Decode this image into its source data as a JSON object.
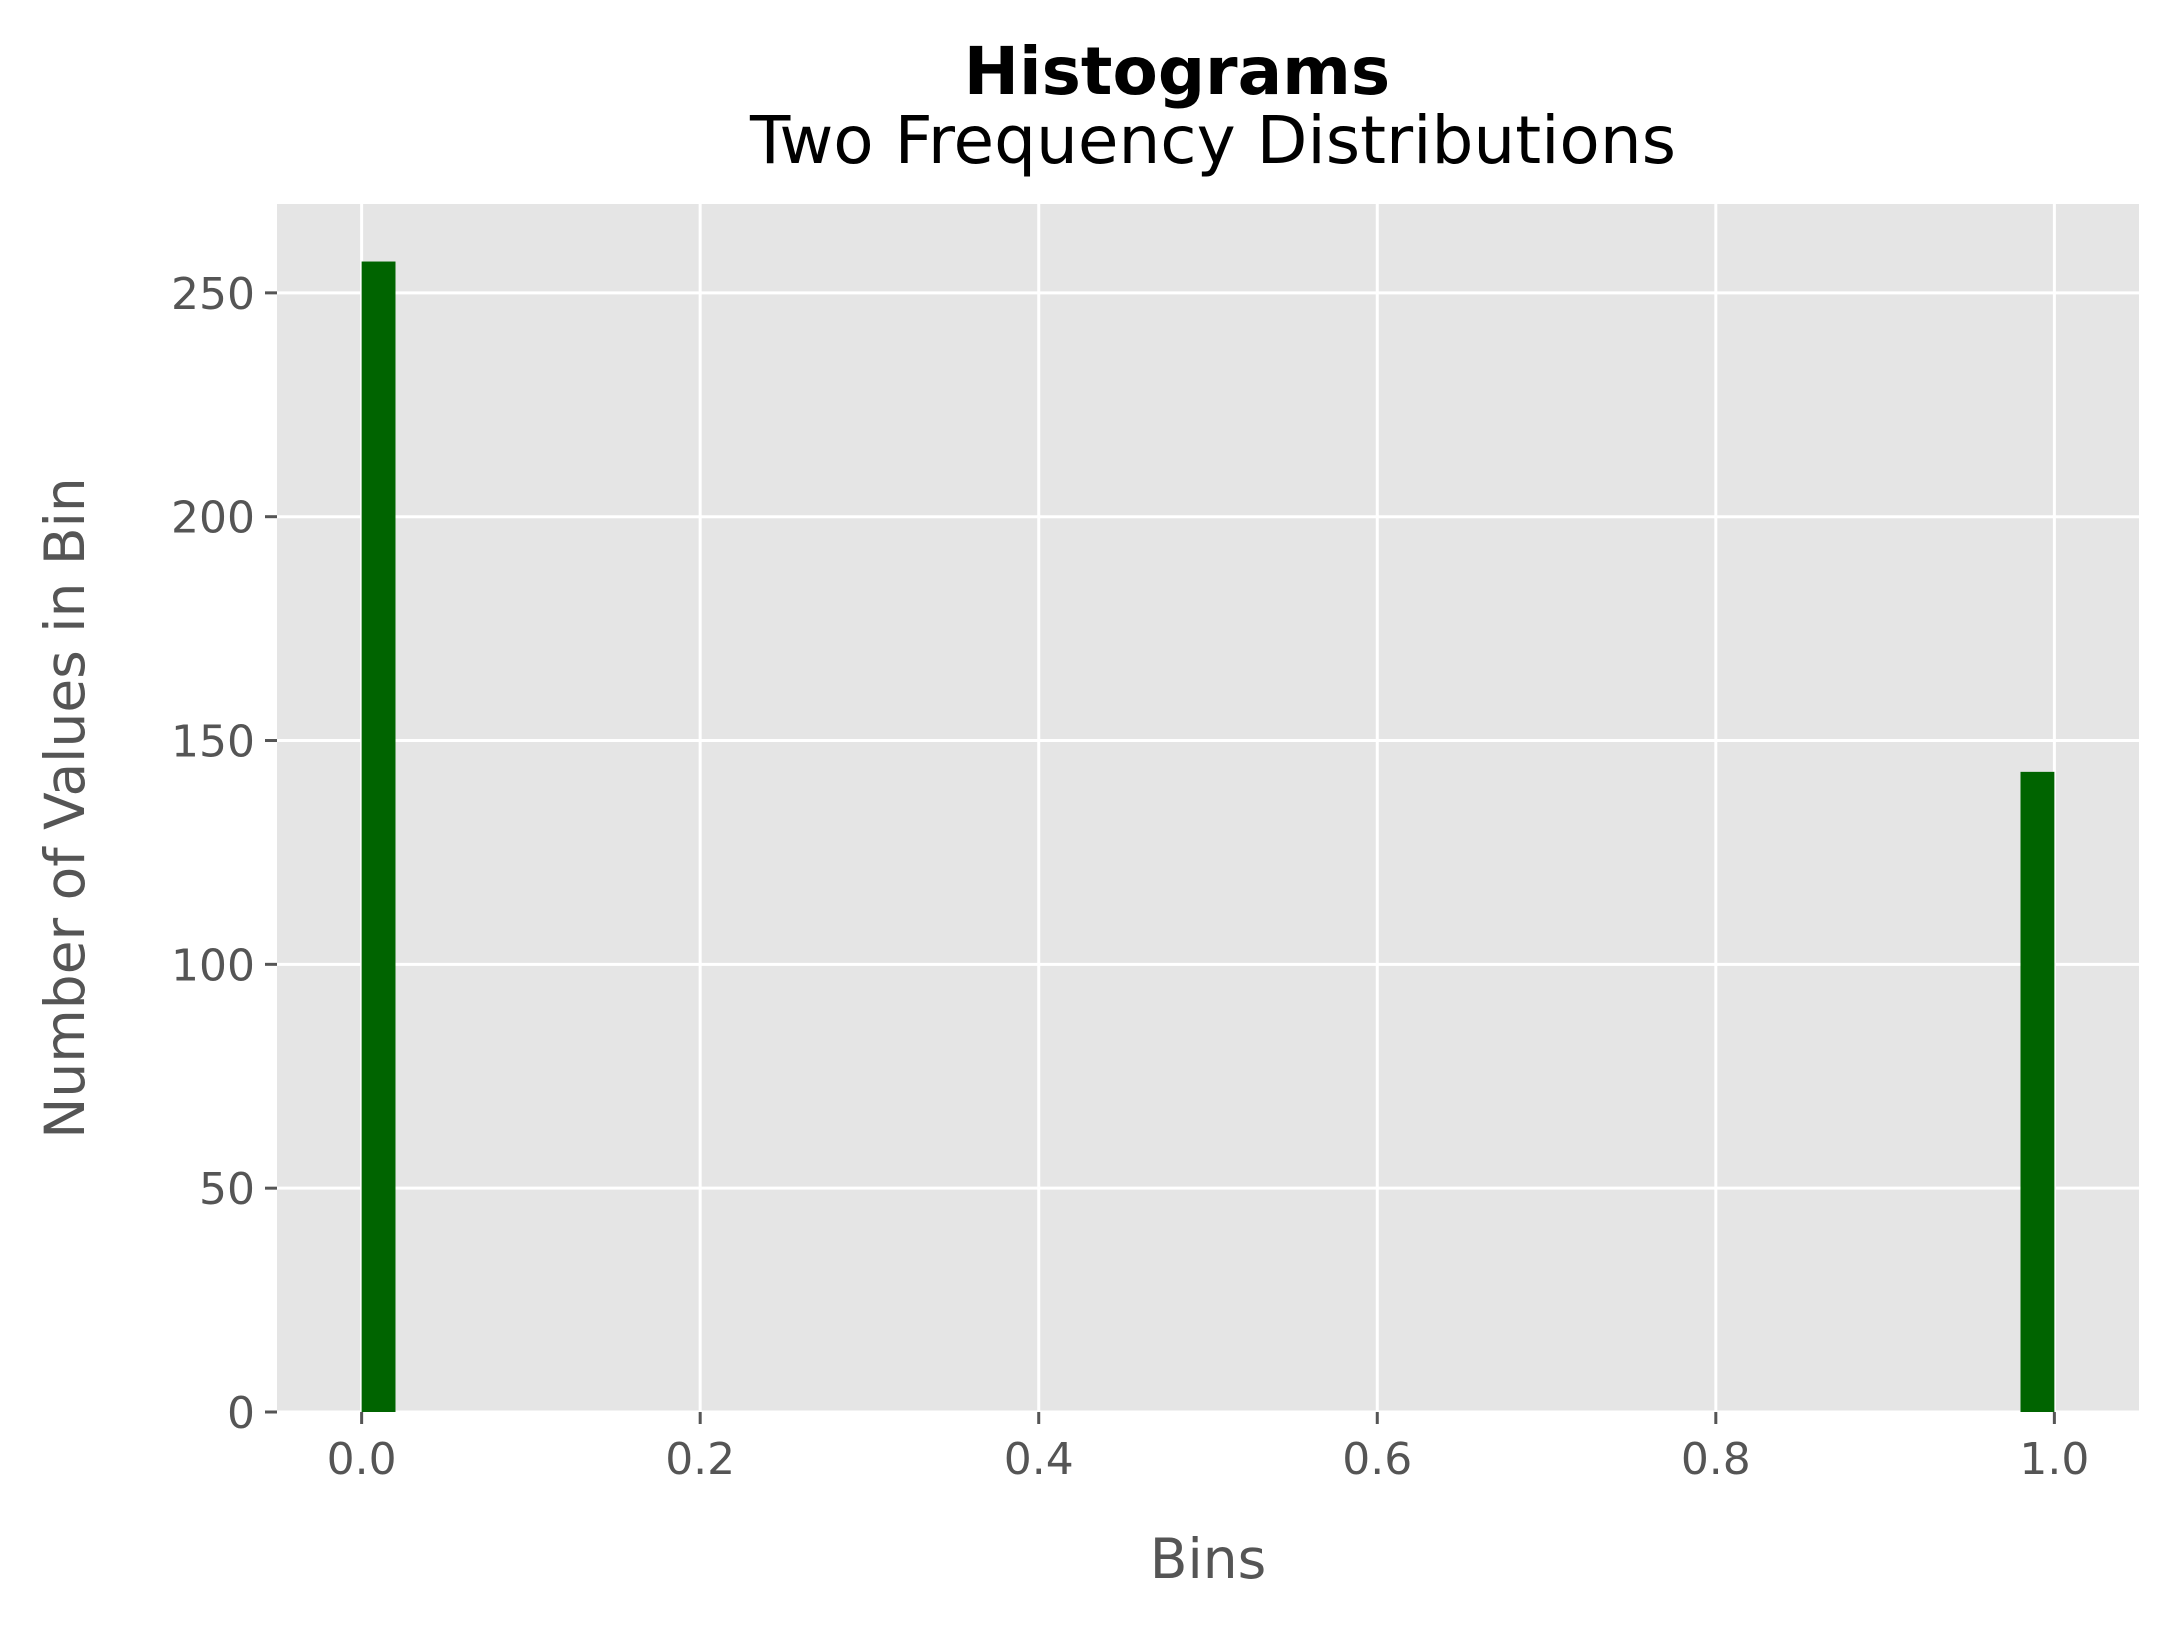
{
  "chart_data": {
    "type": "bar",
    "title": "Histograms",
    "subtitle": "Two Frequency Distributions",
    "xlabel": "Bins",
    "ylabel": "Number of Values in Bin",
    "xlim": [
      -0.05,
      1.05
    ],
    "ylim": [
      0,
      269.85
    ],
    "xticks": [
      0.0,
      0.2,
      0.4,
      0.6,
      0.8,
      1.0
    ],
    "xtick_labels": [
      "0.0",
      "0.2",
      "0.4",
      "0.6",
      "0.8",
      "1.0"
    ],
    "yticks": [
      0,
      50,
      100,
      150,
      200,
      250
    ],
    "ytick_labels": [
      "0",
      "50",
      "100",
      "150",
      "200",
      "250"
    ],
    "bins": [
      {
        "x_start": 0.0,
        "x_end": 0.02,
        "value": 257
      },
      {
        "x_start": 0.98,
        "x_end": 1.0,
        "value": 143
      }
    ],
    "grid": true,
    "colors": {
      "bar": "#006400",
      "plot_background": "#e5e5e5",
      "grid": "#ffffff",
      "tick_text": "#555555"
    }
  }
}
